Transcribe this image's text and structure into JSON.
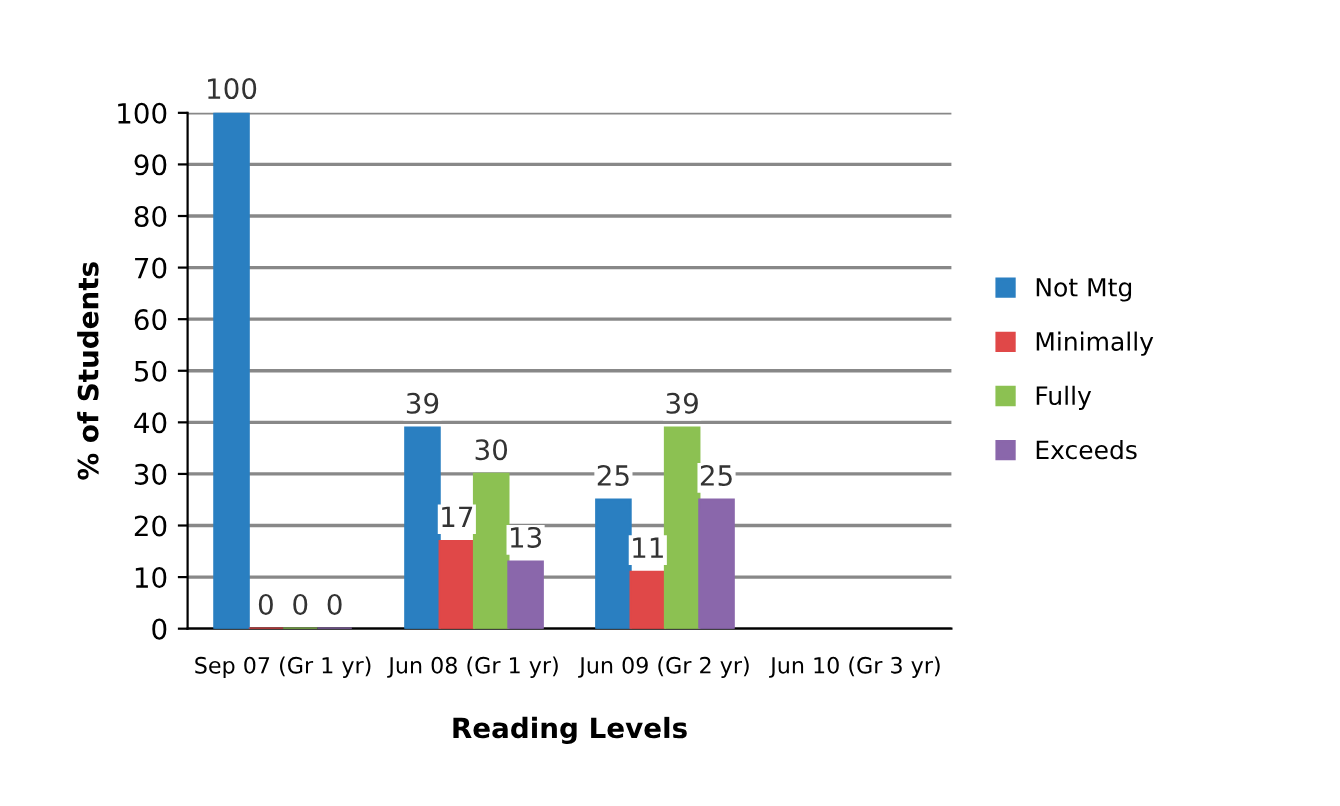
{
  "chart_data": {
    "type": "bar",
    "xlabel": "Reading Levels",
    "ylabel": "% of Students",
    "categories": [
      "Sep 07 (Gr 1 yr)",
      "Jun 08 (Gr 1 yr)",
      "Jun 09 (Gr 2 yr)",
      "Jun 10 (Gr 3 yr)"
    ],
    "series": [
      {
        "name": "Not Mtg",
        "color": "#2a7fc1",
        "values": [
          100,
          39,
          25,
          null
        ]
      },
      {
        "name": "Minimally",
        "color": "#e04848",
        "values": [
          0,
          17,
          11,
          null
        ]
      },
      {
        "name": "Fully",
        "color": "#8cc152",
        "values": [
          0,
          30,
          39,
          null
        ]
      },
      {
        "name": "Exceeds",
        "color": "#8a67ab",
        "values": [
          0,
          13,
          25,
          null
        ]
      }
    ],
    "ylim": [
      0,
      100
    ],
    "yticks": [
      0,
      10,
      20,
      30,
      40,
      50,
      60,
      70,
      80,
      90,
      100
    ],
    "grid": "y",
    "legend": "right",
    "data_labels": true
  }
}
